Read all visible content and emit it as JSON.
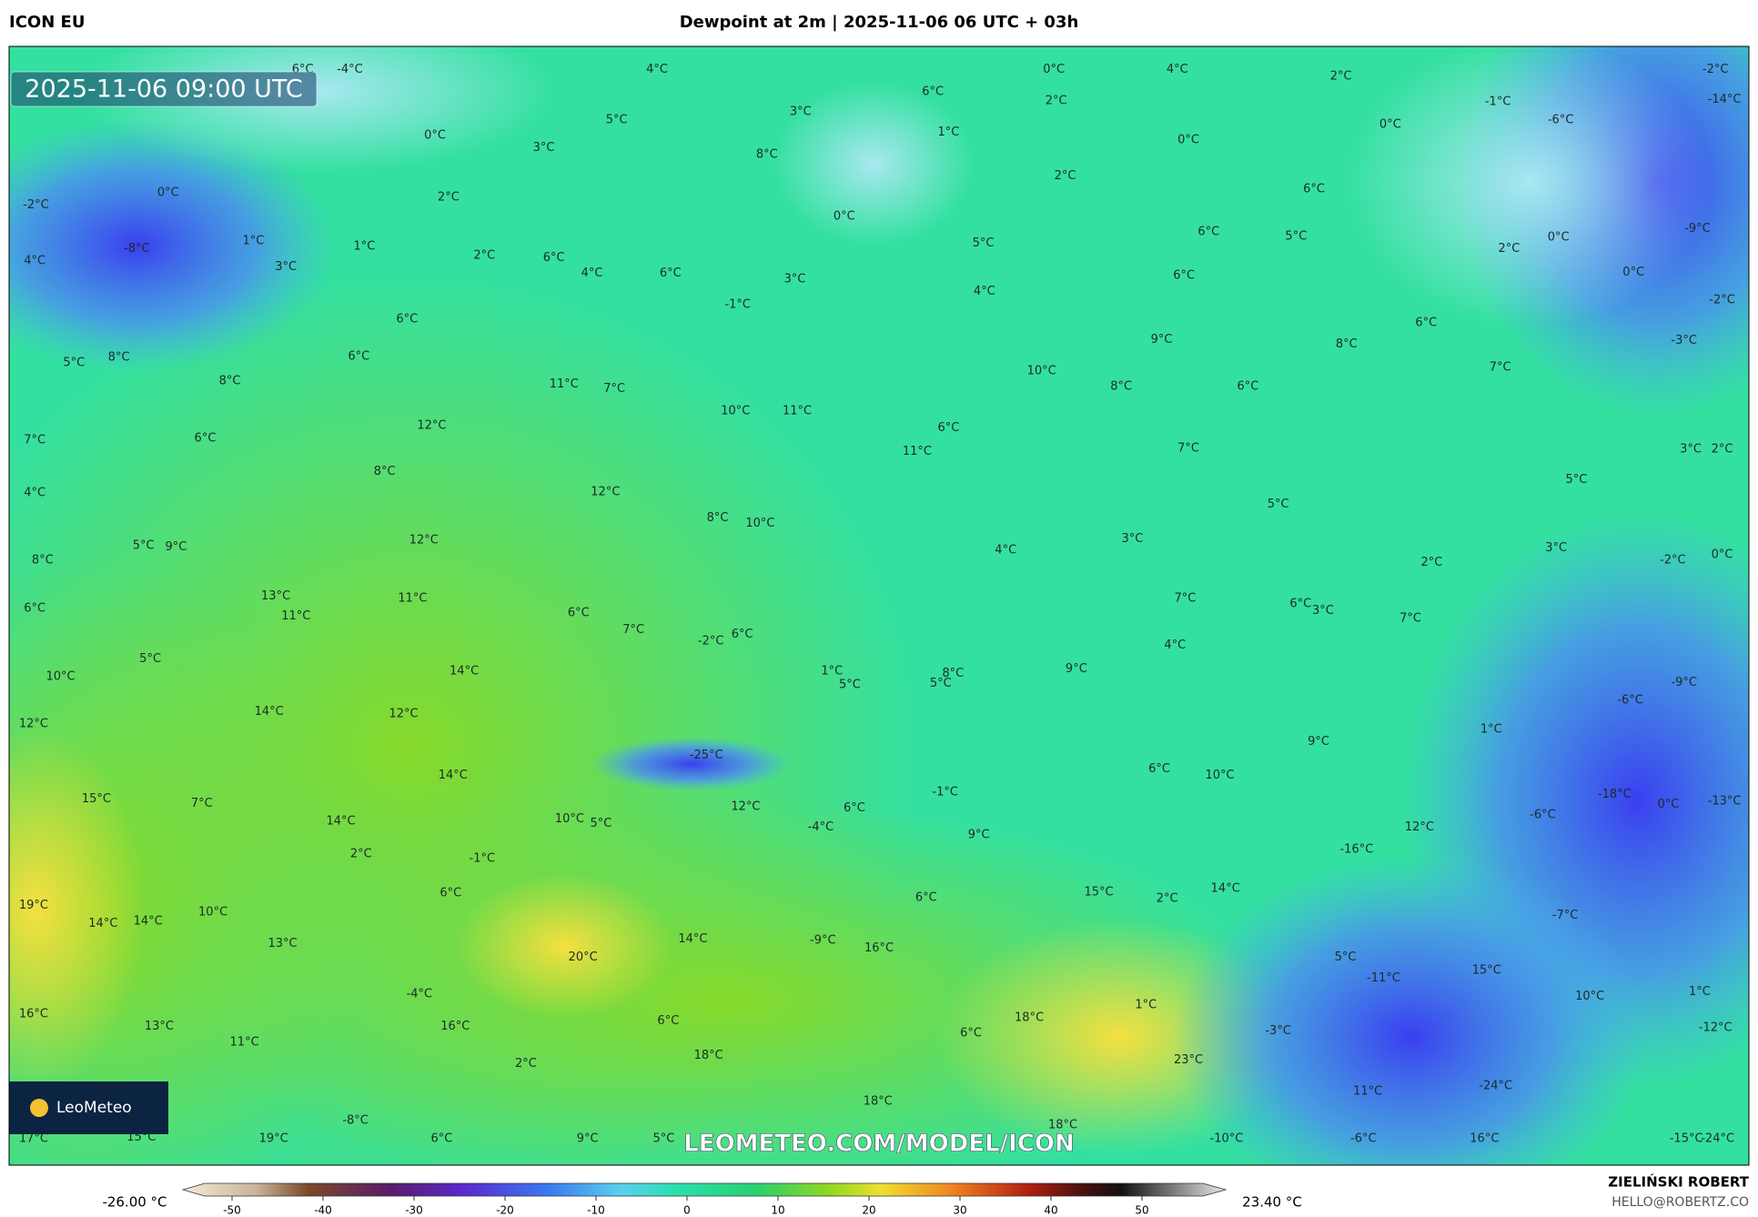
{
  "header": {
    "model": "ICON EU",
    "title": "Dewpoint at 2m | 2025-11-06 06 UTC + 03h"
  },
  "map": {
    "timestamp": "2025-11-06 09:00 UTC",
    "watermark": "LEOMETEO.COM/MODEL/ICON",
    "logo": "LeoMeteo",
    "labels": [
      "6°C",
      "-4°C",
      "4°C",
      "0°C",
      "4°C",
      "2°C",
      "-2°C",
      "5°C",
      "0°C",
      "3°C",
      "0°C",
      "0°C",
      "-1°C",
      "-6°C",
      "-14°C",
      "6°C",
      "2°C",
      "3°C",
      "8°C",
      "1°C",
      "0°C",
      "-2°C",
      "-8°C",
      "1°C",
      "1°C",
      "3°C",
      "2°C",
      "2°C",
      "6°C",
      "4°C",
      "4°C",
      "0°C",
      "2°C",
      "6°C",
      "6°C",
      "5°C",
      "2°C",
      "0°C",
      "-9°C",
      "0°C",
      "-2°C",
      "-3°C",
      "6°C",
      "3°C",
      "-1°C",
      "5°C",
      "4°C",
      "6°C",
      "6°C",
      "6°C",
      "5°C",
      "8°C",
      "8°C",
      "11°C",
      "7°C",
      "9°C",
      "8°C",
      "6°C",
      "7°C",
      "10°C",
      "8°C",
      "6°C",
      "7°C",
      "6°C",
      "12°C",
      "10°C",
      "11°C",
      "6°C",
      "11°C",
      "7°C",
      "3°C",
      "2°C",
      "4°C",
      "8°C",
      "12°C",
      "5°C",
      "5°C",
      "8°C",
      "5°C",
      "9°C",
      "12°C",
      "8°C",
      "10°C",
      "4°C",
      "3°C",
      "2°C",
      "3°C",
      "-2°C",
      "0°C",
      "6°C",
      "13°C",
      "11°C",
      "11°C",
      "6°C",
      "7°C",
      "-2°C",
      "6°C",
      "7°C",
      "6°C",
      "3°C",
      "7°C",
      "5°C",
      "10°C",
      "14°C",
      "1°C",
      "5°C",
      "5°C",
      "8°C",
      "9°C",
      "4°C",
      "-9°C",
      "12°C",
      "14°C",
      "12°C",
      "-25°C",
      "9°C",
      "1°C",
      "-6°C",
      "14°C",
      "15°C",
      "7°C",
      "6°C",
      "10°C",
      "12°C",
      "6°C",
      "-1°C",
      "-18°C",
      "0°C",
      "-13°C",
      "14°C",
      "10°C",
      "5°C",
      "-4°C",
      "9°C",
      "-16°C",
      "12°C",
      "-6°C",
      "2°C",
      "-1°C",
      "6°C",
      "19°C",
      "14°C",
      "14°C",
      "10°C",
      "6°C",
      "15°C",
      "2°C",
      "14°C",
      "-7°C",
      "13°C",
      "14°C",
      "-9°C",
      "16°C",
      "20°C",
      "5°C",
      "-11°C",
      "15°C",
      "-4°C",
      "1°C",
      "10°C",
      "1°C",
      "16°C",
      "13°C",
      "16°C",
      "6°C",
      "18°C",
      "6°C",
      "-3°C",
      "-12°C",
      "11°C",
      "18°C",
      "23°C",
      "2°C",
      "-8°C",
      "11°C",
      "-24°C",
      "18°C",
      "18°C",
      "17°C",
      "15°C",
      "19°C",
      "6°C",
      "9°C",
      "5°C",
      "-10°C",
      "16°C",
      "-6°C",
      "-15°C",
      "-24°C"
    ]
  },
  "colorbar": {
    "min_label": "-26.00 °C",
    "max_label": "23.40 °C",
    "ticks": [
      -50,
      -40,
      -30,
      -20,
      -10,
      0,
      10,
      20,
      30,
      40,
      50
    ]
  },
  "footer": {
    "author": "ZIELIŃSKI ROBERT",
    "email": "HELLO@ROBERTZ.CO"
  }
}
